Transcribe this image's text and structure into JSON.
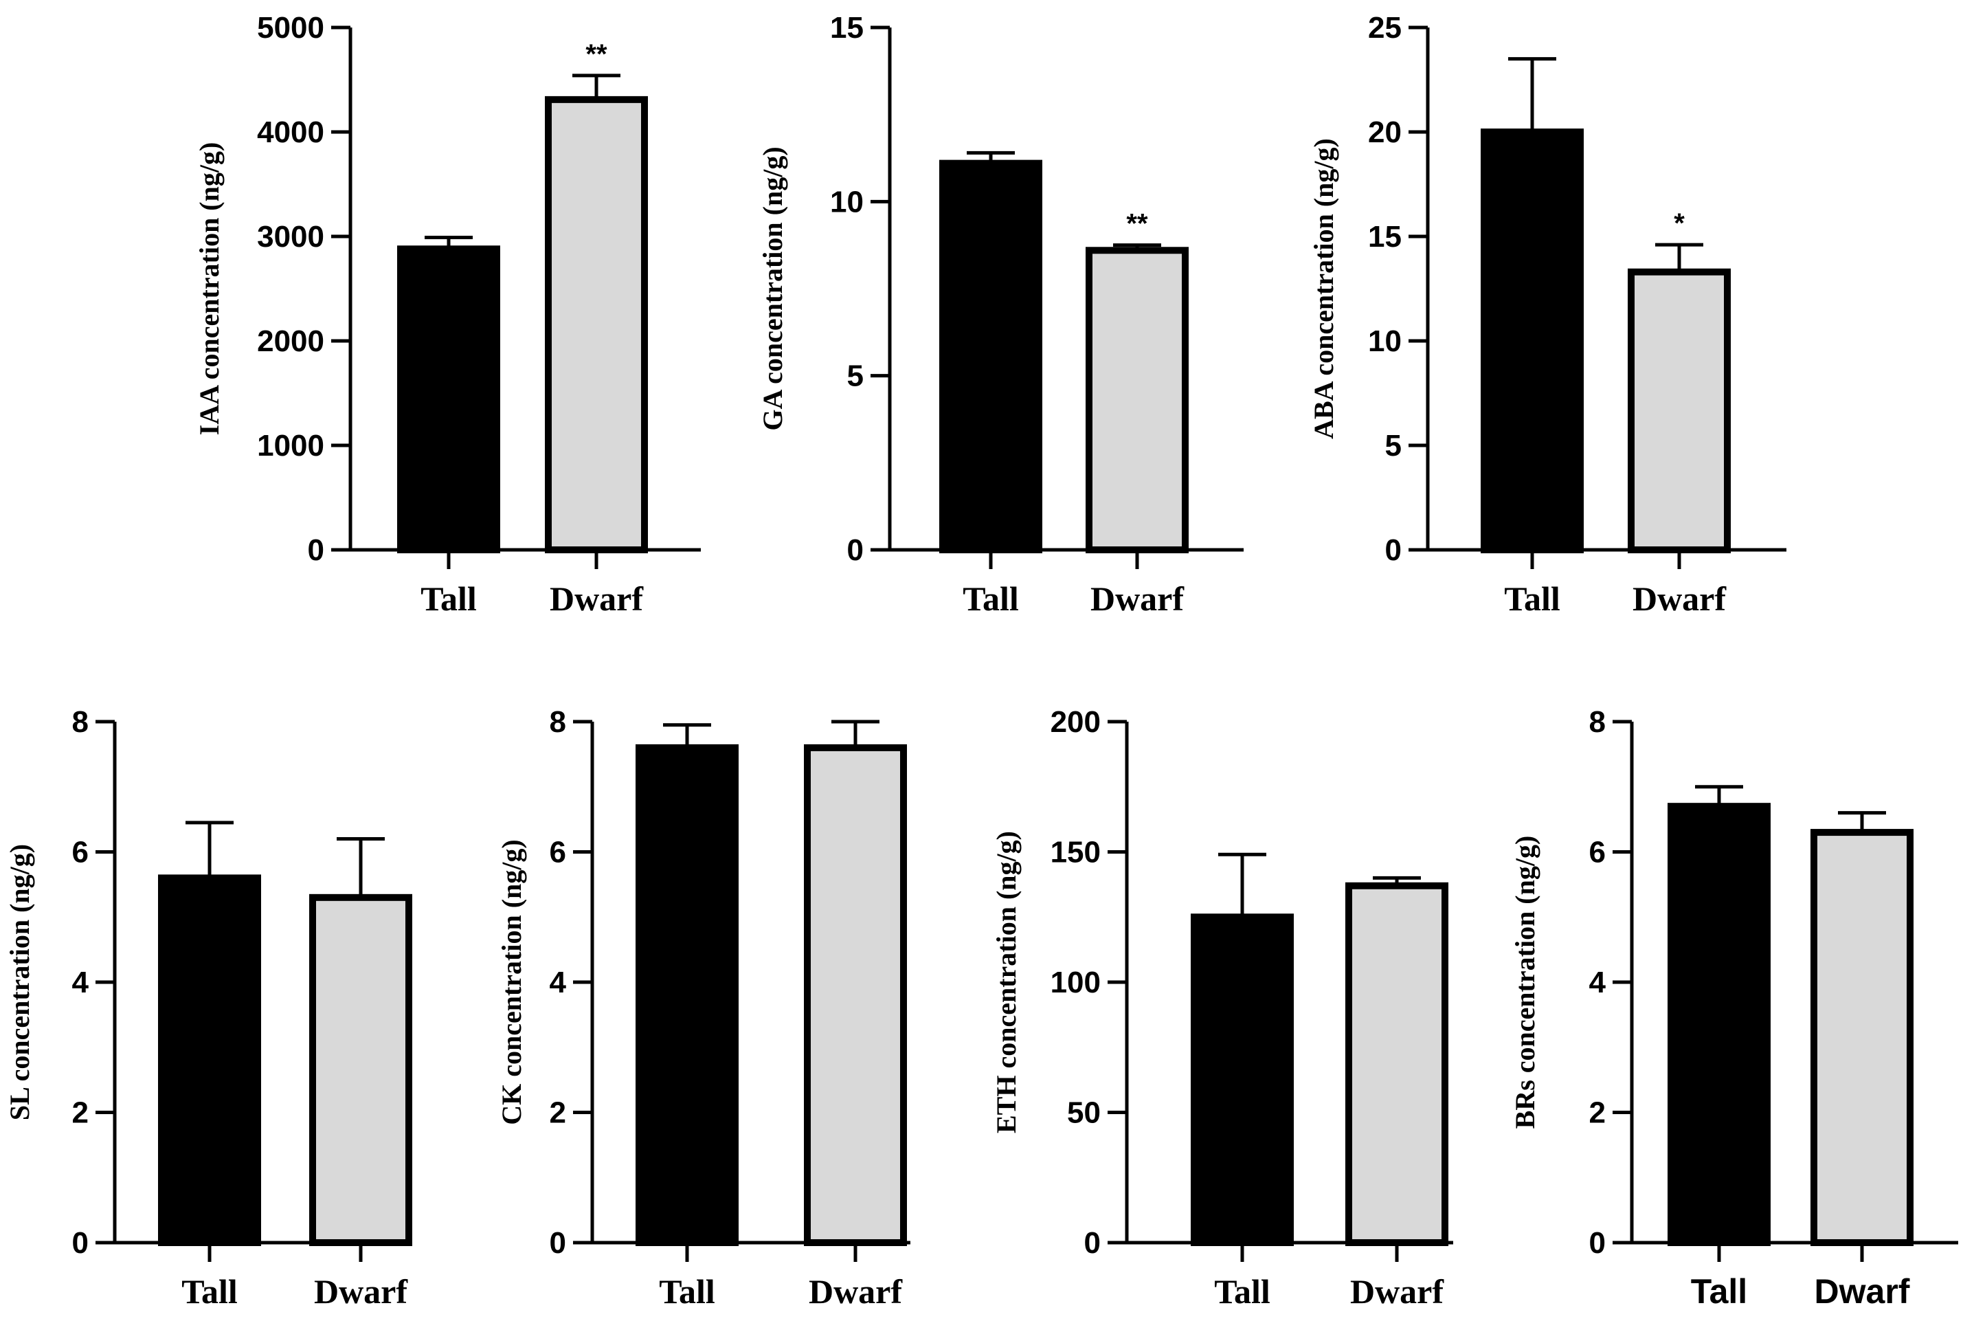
{
  "colors": {
    "tall_fill": "#000000",
    "dwarf_fill": "#d9d9d9",
    "stroke": "#000000"
  },
  "chart_data": [
    {
      "type": "bar",
      "ylabel": "IAA concentration (ng/g)",
      "categories": [
        "Tall",
        "Dwarf"
      ],
      "values": [
        2880,
        4310
      ],
      "error": [
        110,
        230
      ],
      "significance": [
        "",
        "**"
      ],
      "ylim": [
        0,
        5000
      ],
      "yticks": [
        0,
        1000,
        2000,
        3000,
        4000,
        5000
      ]
    },
    {
      "type": "bar",
      "ylabel": "GA concentration (ng/g)",
      "categories": [
        "Tall",
        "Dwarf"
      ],
      "values": [
        11.1,
        8.6
      ],
      "error": [
        0.3,
        0.15
      ],
      "significance": [
        "",
        "**"
      ],
      "ylim": [
        0,
        15
      ],
      "yticks": [
        0,
        5,
        10,
        15
      ]
    },
    {
      "type": "bar",
      "ylabel": "ABA concentration (ng/g)",
      "categories": [
        "Tall",
        "Dwarf"
      ],
      "values": [
        20.0,
        13.3
      ],
      "error": [
        3.5,
        1.3
      ],
      "significance": [
        "",
        "*"
      ],
      "ylim": [
        0,
        25
      ],
      "yticks": [
        0,
        5,
        10,
        15,
        20,
        25
      ]
    },
    {
      "type": "bar",
      "ylabel": "SL concentration (ng/g)",
      "categories": [
        "Tall",
        "Dwarf"
      ],
      "values": [
        5.6,
        5.3
      ],
      "error": [
        0.85,
        0.9
      ],
      "significance": [
        "",
        ""
      ],
      "ylim": [
        0,
        8
      ],
      "yticks": [
        0,
        2,
        4,
        6,
        8
      ]
    },
    {
      "type": "bar",
      "ylabel": "CK concentration (ng/g)",
      "categories": [
        "Tall",
        "Dwarf"
      ],
      "values": [
        7.6,
        7.6
      ],
      "error": [
        0.35,
        0.4
      ],
      "significance": [
        "",
        ""
      ],
      "ylim": [
        0,
        8
      ],
      "yticks": [
        0,
        2,
        4,
        6,
        8
      ]
    },
    {
      "type": "bar",
      "ylabel": "ETH concentration (ng/g)",
      "categories": [
        "Tall",
        "Dwarf"
      ],
      "values": [
        125,
        137
      ],
      "error": [
        24,
        3
      ],
      "significance": [
        "",
        ""
      ],
      "ylim": [
        0,
        200
      ],
      "yticks": [
        0,
        50,
        100,
        150,
        200
      ]
    },
    {
      "type": "bar",
      "ylabel": "BRs concentration (ng/g)",
      "categories": [
        "Tall",
        "Dwarf"
      ],
      "values": [
        6.7,
        6.3
      ],
      "error": [
        0.3,
        0.3
      ],
      "significance": [
        "",
        ""
      ],
      "ylim": [
        0,
        8
      ],
      "yticks": [
        0,
        2,
        4,
        6,
        8
      ]
    }
  ]
}
